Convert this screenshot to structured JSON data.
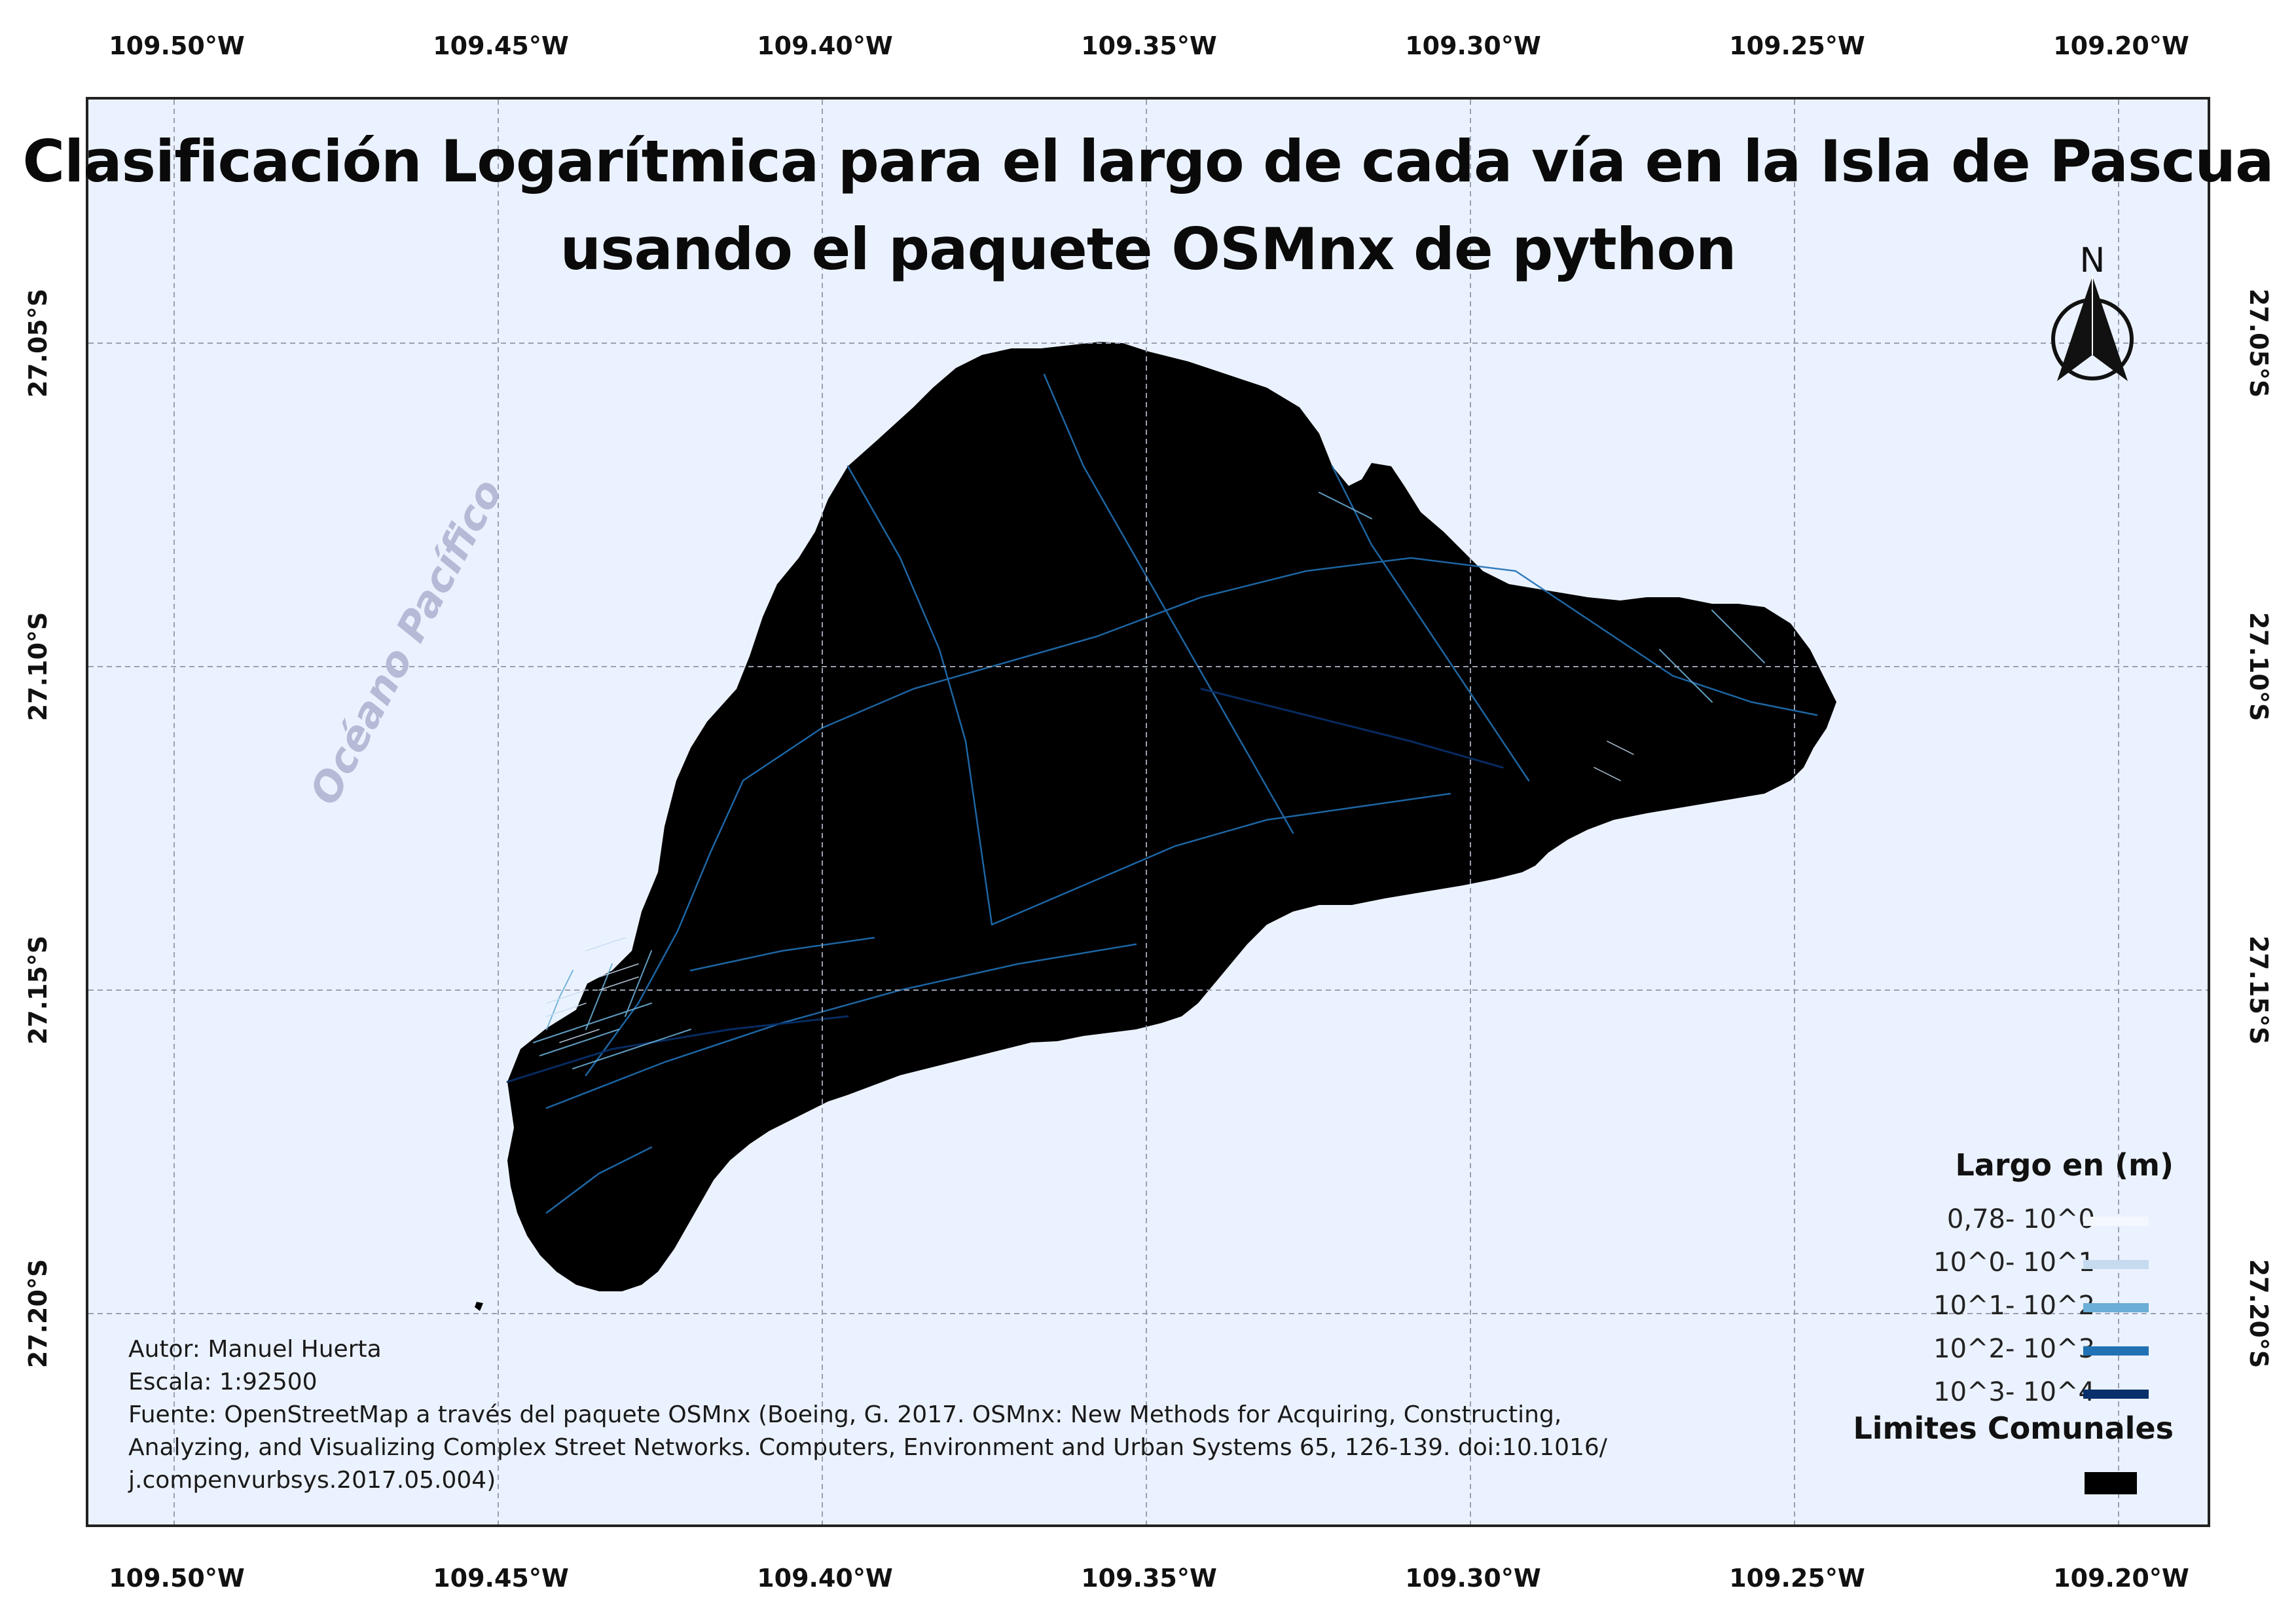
{
  "map": {
    "title_line1": "Clasificación Logarítmica para el largo de cada vía en la Isla de Pascua",
    "title_line2": "usando el paquete OSMnx de python",
    "ocean_label": "Océano Pacífico",
    "north_label": "N",
    "background_color": "#ebf2ff",
    "land_color": "#000000"
  },
  "axes": {
    "longitude_labels": [
      "109.50°W",
      "109.45°W",
      "109.40°W",
      "109.35°W",
      "109.30°W",
      "109.25°W",
      "109.20°W"
    ],
    "latitude_labels": [
      "27.05°S",
      "27.10°S",
      "27.15°S",
      "27.20°S"
    ],
    "grid": "dashed",
    "grid_color": "#9aa0b0"
  },
  "legend": {
    "title": "Largo en (m)",
    "items": [
      {
        "label": "0,78- 10^0",
        "color": "#f4f8fe"
      },
      {
        "label": "10^0- 10^1",
        "color": "#c6dbef"
      },
      {
        "label": "10^1- 10^2",
        "color": "#6baed6"
      },
      {
        "label": "10^2- 10^3",
        "color": "#2171b5"
      },
      {
        "label": "10^3- 10^4",
        "color": "#08306b"
      }
    ],
    "comunal_title": "Limites Comunales",
    "comunal_color": "#000000"
  },
  "credits": {
    "author": "Autor: Manuel Huerta",
    "scale": "Escala: 1:92500",
    "source_line1": "Fuente: OpenStreetMap a través del paquete OSMnx (Boeing, G. 2017. OSMnx: New Methods for Acquiring, Constructing,",
    "source_line2": "Analyzing, and Visualizing Complex Street Networks. Computers, Environment and Urban Systems 65, 126-139. doi:10.1016/",
    "source_line3": "j.compenvurbsys.2017.05.004)"
  }
}
